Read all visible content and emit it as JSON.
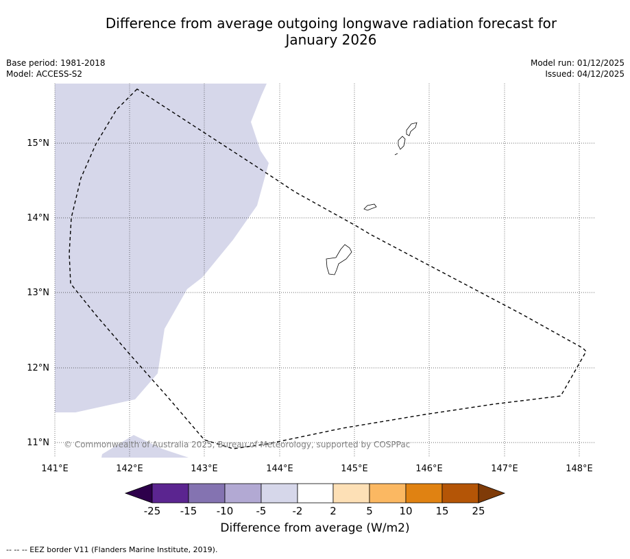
{
  "title": {
    "line1": "Difference from average outgoing longwave radiation forecast for",
    "line2": "January 2026"
  },
  "info": {
    "base_period": "Base period: 1981-2018",
    "model": "Model: ACCESS-S2",
    "model_run": "Model run: 01/12/2025",
    "issued": "Issued: 04/12/2025"
  },
  "map": {
    "lon_labels": [
      "141°E",
      "142°E",
      "143°E",
      "144°E",
      "145°E",
      "146°E",
      "147°E",
      "148°E"
    ],
    "lat_labels": [
      "15°N",
      "14°N",
      "13°N",
      "12°N",
      "11°N"
    ],
    "lon_range": [
      141.0,
      148.2
    ],
    "lat_range": [
      10.8,
      15.8
    ],
    "anomaly_region_category": "-5 to -2",
    "copyright": "© Commonwealth of Australia 2025, Bureau of Meteorology, supported by COSPPac"
  },
  "colorbar": {
    "title": "Difference from average (W/m2)",
    "ticks": [
      "-25",
      "-15",
      "-10",
      "-5",
      "-2",
      "2",
      "5",
      "10",
      "15",
      "25"
    ],
    "colors": [
      "#5b2590",
      "#8473b1",
      "#b2a9d3",
      "#d6d7ea",
      "#ffffff",
      "#fde0b6",
      "#fbb862",
      "#e08212",
      "#b45506"
    ],
    "low_color": "#2d004b",
    "high_color": "#7f3b08"
  },
  "footnote": "--  --  -- EEZ border V11 (Flanders Marine Institute, 2019)."
}
